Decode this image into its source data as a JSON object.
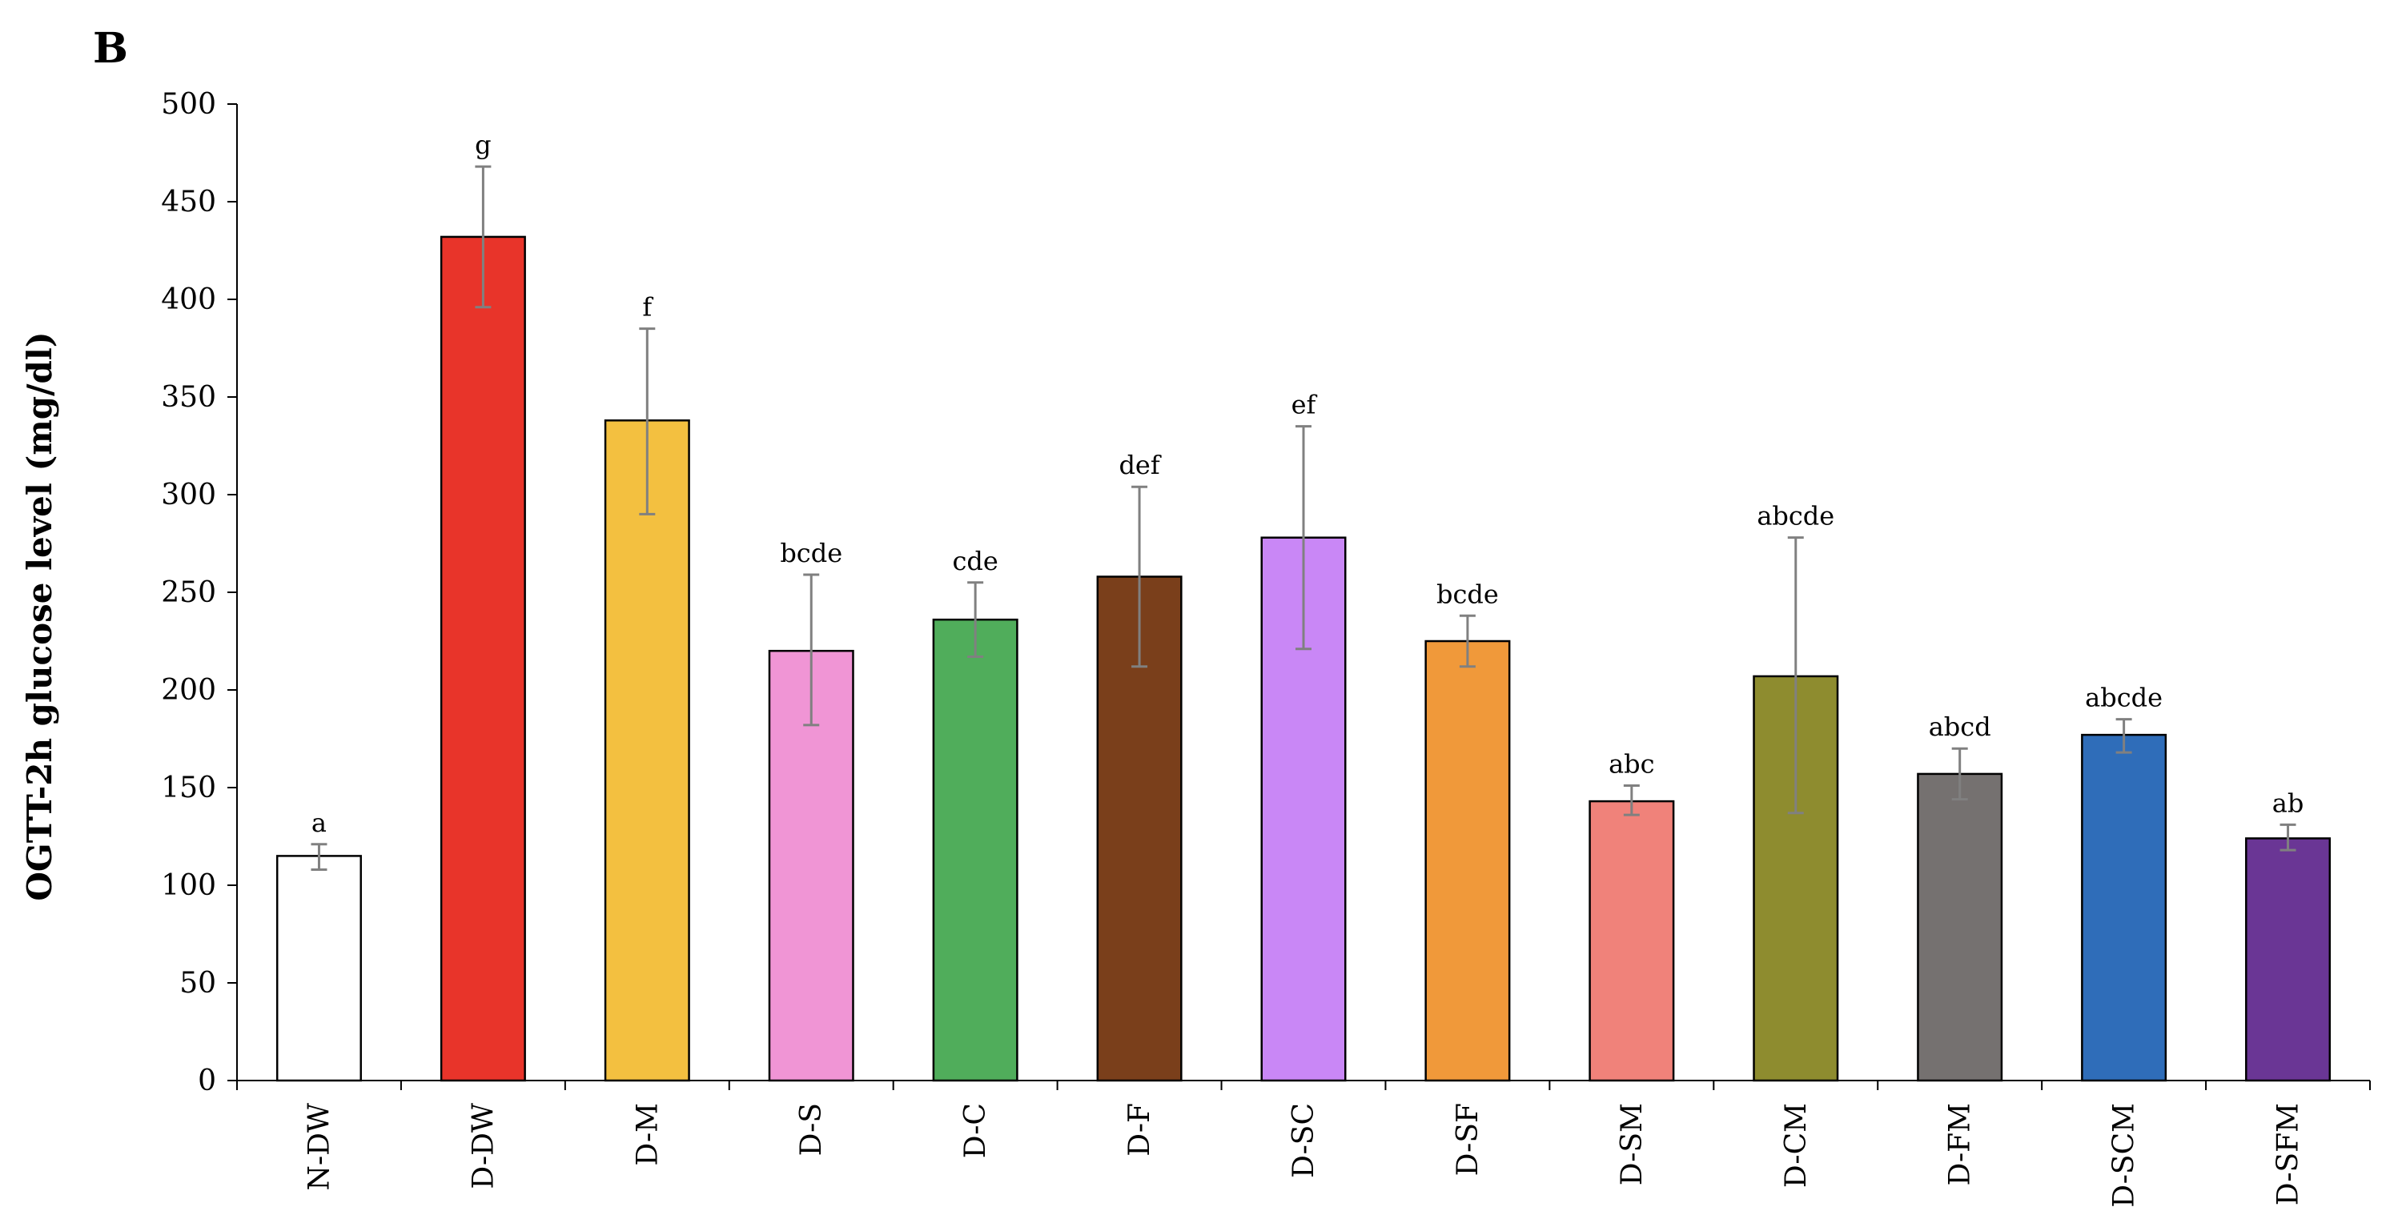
{
  "panel_label": "B",
  "chart_data": {
    "type": "bar",
    "title": "",
    "xlabel": "",
    "ylabel": "OGTT-2h glucose level (mg/dl)",
    "ylim": [
      0,
      500
    ],
    "yticks": [
      0,
      50,
      100,
      150,
      200,
      250,
      300,
      350,
      400,
      450,
      500
    ],
    "grid": false,
    "legend": "none",
    "categories": [
      "N-DW",
      "D-DW",
      "D-M",
      "D-S",
      "D-C",
      "D-F",
      "D-SC",
      "D-SF",
      "D-SM",
      "D-CM",
      "D-FM",
      "D-SCM",
      "D-SFM"
    ],
    "values": [
      115,
      432,
      338,
      220,
      236,
      258,
      278,
      225,
      143,
      207,
      157,
      177,
      124
    ],
    "error_high": [
      121,
      468,
      385,
      259,
      255,
      304,
      335,
      238,
      151,
      278,
      170,
      185,
      131
    ],
    "error_low": [
      108,
      396,
      290,
      182,
      217,
      212,
      221,
      212,
      136,
      137,
      144,
      168,
      118
    ],
    "significance_labels": [
      "a",
      "g",
      "f",
      "bcde",
      "cde",
      "def",
      "ef",
      "bcde",
      "abc",
      "abcde",
      "abcd",
      "abcde",
      "ab"
    ],
    "colors": [
      "#ffffff",
      "#e8342a",
      "#f3c040",
      "#f095d5",
      "#50ad5b",
      "#7a3f1b",
      "#c987f6",
      "#f0993a",
      "#f0827a",
      "#8e8c2f",
      "#757170",
      "#2f6db9",
      "#6a3695"
    ]
  }
}
